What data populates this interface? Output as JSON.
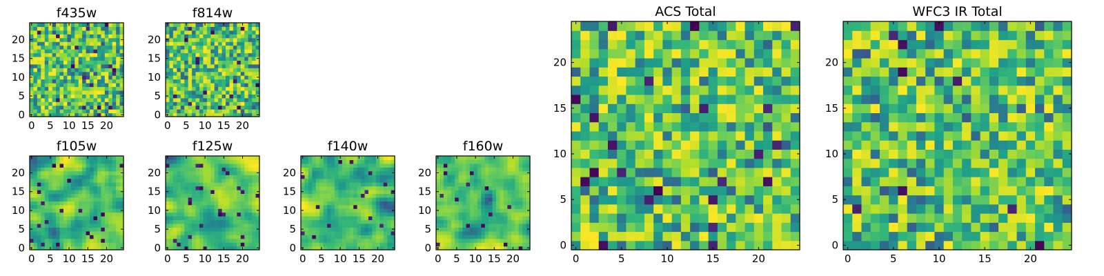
{
  "chart_data": [
    {
      "type": "heatmap",
      "title": "f435w",
      "colormap": "viridis",
      "grid": false,
      "shape": [
        25,
        25
      ],
      "xlim": [
        0,
        24
      ],
      "ylim": [
        0,
        24
      ],
      "xticks": [
        0,
        5,
        10,
        15,
        20
      ],
      "yticks": [
        0,
        5,
        10,
        15,
        20
      ],
      "xticklabels": [
        "0",
        "5",
        "10",
        "15",
        "20"
      ],
      "yticklabels": [
        "0",
        "5",
        "10",
        "15",
        "20"
      ],
      "noise_scale": "pixel"
    },
    {
      "type": "heatmap",
      "title": "f814w",
      "colormap": "viridis",
      "grid": false,
      "shape": [
        25,
        25
      ],
      "xlim": [
        0,
        24
      ],
      "ylim": [
        0,
        24
      ],
      "xticks": [
        0,
        5,
        10,
        15,
        20
      ],
      "yticks": [
        0,
        5,
        10,
        15,
        20
      ],
      "xticklabels": [
        "0",
        "5",
        "10",
        "15",
        "20"
      ],
      "yticklabels": [
        "0",
        "5",
        "10",
        "15",
        "20"
      ],
      "noise_scale": "pixel"
    },
    {
      "type": "heatmap",
      "title": "f105w",
      "colormap": "viridis",
      "grid": false,
      "shape": [
        25,
        25
      ],
      "xlim": [
        0,
        24
      ],
      "ylim": [
        0,
        24
      ],
      "xticks": [
        0,
        5,
        10,
        15,
        20
      ],
      "yticks": [
        0,
        5,
        10,
        15,
        20
      ],
      "xticklabels": [
        "0",
        "5",
        "10",
        "15",
        "20"
      ],
      "yticklabels": [
        "0",
        "5",
        "10",
        "15",
        "20"
      ],
      "noise_scale": "smoothed"
    },
    {
      "type": "heatmap",
      "title": "f125w",
      "colormap": "viridis",
      "grid": false,
      "shape": [
        25,
        25
      ],
      "xlim": [
        0,
        24
      ],
      "ylim": [
        0,
        24
      ],
      "xticks": [
        0,
        5,
        10,
        15,
        20
      ],
      "yticks": [
        0,
        5,
        10,
        15,
        20
      ],
      "xticklabels": [
        "0",
        "5",
        "10",
        "15",
        "20"
      ],
      "yticklabels": [
        "0",
        "5",
        "10",
        "15",
        "20"
      ],
      "noise_scale": "smoothed"
    },
    {
      "type": "heatmap",
      "title": "f140w",
      "colormap": "viridis",
      "grid": false,
      "shape": [
        25,
        25
      ],
      "xlim": [
        0,
        24
      ],
      "ylim": [
        0,
        24
      ],
      "xticks": [
        0,
        5,
        10,
        15,
        20
      ],
      "yticks": [
        0,
        5,
        10,
        15,
        20
      ],
      "xticklabels": [
        "0",
        "5",
        "10",
        "15",
        "20"
      ],
      "yticklabels": [
        "0",
        "5",
        "10",
        "15",
        "20"
      ],
      "noise_scale": "smoothed"
    },
    {
      "type": "heatmap",
      "title": "f160w",
      "colormap": "viridis",
      "grid": false,
      "shape": [
        25,
        25
      ],
      "xlim": [
        0,
        24
      ],
      "ylim": [
        0,
        24
      ],
      "xticks": [
        0,
        5,
        10,
        15,
        20
      ],
      "yticks": [
        0,
        5,
        10,
        15,
        20
      ],
      "xticklabels": [
        "0",
        "5",
        "10",
        "15",
        "20"
      ],
      "yticklabels": [
        "0",
        "5",
        "10",
        "15",
        "20"
      ],
      "noise_scale": "smoothed"
    },
    {
      "type": "heatmap",
      "title": "ACS Total",
      "colormap": "viridis",
      "grid": false,
      "shape": [
        25,
        25
      ],
      "xlim": [
        0,
        24
      ],
      "ylim": [
        0,
        24
      ],
      "xticks": [
        0,
        5,
        10,
        15,
        20
      ],
      "yticks": [
        0,
        5,
        10,
        15,
        20
      ],
      "xticklabels": [
        "0",
        "5",
        "10",
        "15",
        "20"
      ],
      "yticklabels": [
        "0",
        "5",
        "10",
        "15",
        "20"
      ],
      "noise_scale": "pixel"
    },
    {
      "type": "heatmap",
      "title": "WFC3 IR Total",
      "colormap": "viridis",
      "grid": false,
      "shape": [
        25,
        25
      ],
      "xlim": [
        0,
        24
      ],
      "ylim": [
        0,
        24
      ],
      "xticks": [
        0,
        5,
        10,
        15,
        20
      ],
      "yticks": [
        0,
        5,
        10,
        15,
        20
      ],
      "xticklabels": [
        "0",
        "5",
        "10",
        "15",
        "20"
      ],
      "yticklabels": [
        "0",
        "5",
        "10",
        "15",
        "20"
      ],
      "noise_scale": "pixel"
    }
  ]
}
